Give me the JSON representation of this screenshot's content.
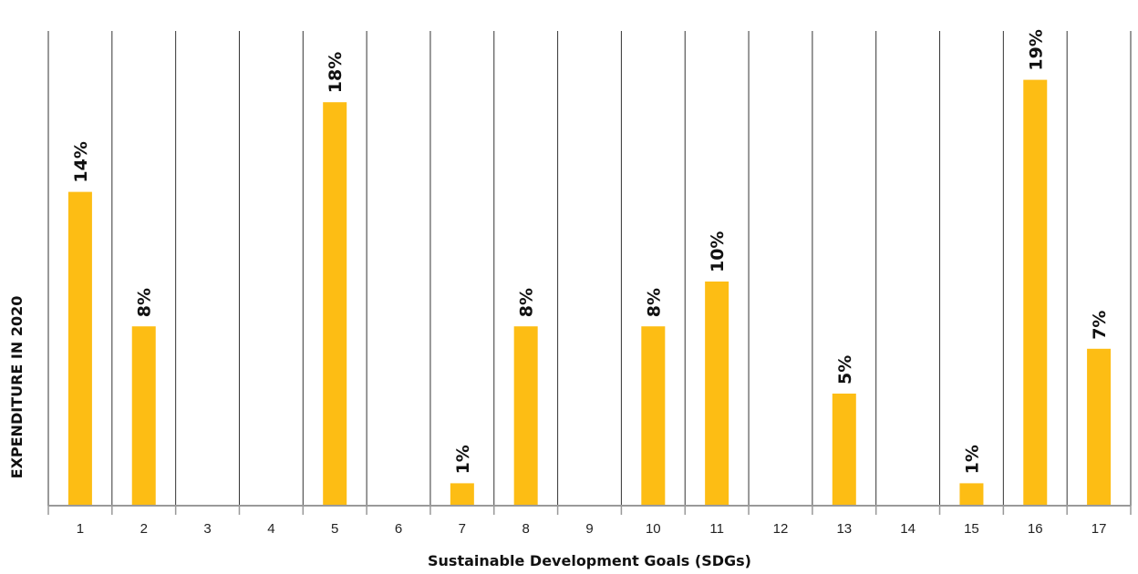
{
  "chart_data": {
    "type": "bar",
    "categories": [
      "1",
      "2",
      "3",
      "4",
      "5",
      "6",
      "7",
      "8",
      "9",
      "10",
      "11",
      "12",
      "13",
      "14",
      "15",
      "16",
      "17"
    ],
    "values": [
      14,
      8,
      0,
      0,
      18,
      0,
      1,
      8,
      0,
      8,
      10,
      0,
      5,
      0,
      1,
      19,
      7
    ],
    "value_labels": [
      "14%",
      "8%",
      "",
      "",
      "18%",
      "",
      "1%",
      "8%",
      "",
      "8%",
      "10%",
      "",
      "5%",
      "",
      "1%",
      "19%",
      "7%"
    ],
    "xlabel": "Sustainable Development Goals (SDGs)",
    "ylabel": "EXPENDITURE IN 2020",
    "ylim": [
      0,
      19
    ],
    "grid": "vertical separators",
    "bar_color": "#FDBD14"
  }
}
